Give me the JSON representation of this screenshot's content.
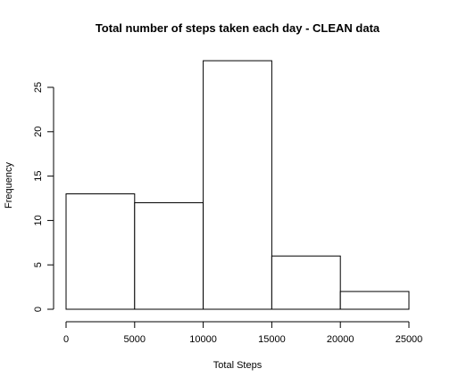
{
  "chart_data": {
    "type": "bar",
    "title": "Total number of steps taken each day - CLEAN data",
    "xlabel": "Total Steps",
    "ylabel": "Frequency",
    "bins": [
      {
        "from": 0,
        "to": 5000,
        "count": 13
      },
      {
        "from": 5000,
        "to": 10000,
        "count": 12
      },
      {
        "from": 10000,
        "to": 15000,
        "count": 28
      },
      {
        "from": 15000,
        "to": 20000,
        "count": 6
      },
      {
        "from": 20000,
        "to": 25000,
        "count": 2
      }
    ],
    "xlim": [
      0,
      25000
    ],
    "ylim": [
      0,
      28
    ],
    "x_ticks": [
      0,
      5000,
      10000,
      15000,
      20000,
      25000
    ],
    "x_tick_labels": [
      "0",
      "5000",
      "10000",
      "15000",
      "20000",
      "25000"
    ],
    "y_ticks": [
      0,
      5,
      10,
      15,
      20,
      25
    ],
    "y_tick_labels": [
      "0",
      "5",
      "10",
      "15",
      "20",
      "25"
    ],
    "grid": false,
    "legend": false
  }
}
